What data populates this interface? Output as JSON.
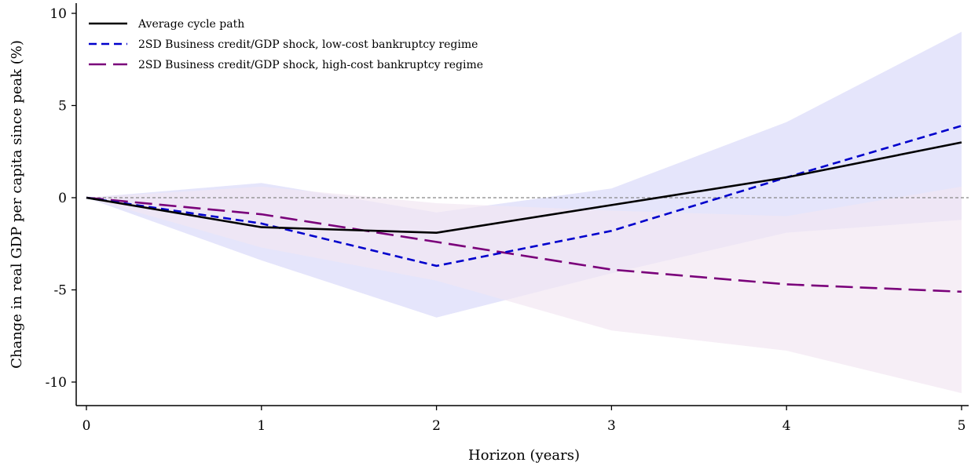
{
  "chart_data": {
    "type": "line",
    "title": "",
    "xlabel": "Horizon (years)",
    "ylabel": "Change in real GDP per capita since peak (%)",
    "xlim": [
      0,
      5
    ],
    "ylim": [
      -11,
      10.5
    ],
    "x_ticks": [
      0,
      1,
      2,
      3,
      4,
      5
    ],
    "y_ticks": [
      10,
      5,
      0,
      -5,
      -10
    ],
    "grid": false,
    "legend_position": "top-left",
    "reference_line": {
      "y": 0,
      "style": "dashed",
      "color": "#888888"
    },
    "x": [
      0,
      1,
      2,
      3,
      4,
      5
    ],
    "bands": [
      {
        "of": "2SD Business credit/GDP shock, low-cost bankruptcy regime",
        "color": "#e5e5fb",
        "lower": [
          0,
          -3.4,
          -6.5,
          -4.1,
          -1.9,
          -1.2
        ],
        "upper": [
          0,
          0.8,
          -0.8,
          0.5,
          4.1,
          9.0
        ]
      },
      {
        "of": "2SD Business credit/GDP shock, high-cost bankruptcy regime",
        "color": "#f2e7f2",
        "lower": [
          0,
          -2.7,
          -4.5,
          -7.2,
          -8.3,
          -10.6
        ],
        "upper": [
          0,
          0.6,
          -0.3,
          -0.7,
          -1.0,
          0.6
        ]
      }
    ],
    "series": [
      {
        "name": "Average cycle path",
        "color": "#000000",
        "style": "solid",
        "values": [
          0,
          -1.6,
          -1.9,
          -0.4,
          1.1,
          3.0
        ]
      },
      {
        "name": "2SD Business credit/GDP shock, low-cost bankruptcy regime",
        "color": "#0000cc",
        "style": "dashed",
        "values": [
          0,
          -1.4,
          -3.7,
          -1.8,
          1.1,
          3.9
        ]
      },
      {
        "name": "2SD Business credit/GDP shock, high-cost bankruptcy regime",
        "color": "#7a007a",
        "style": "longdash",
        "values": [
          0,
          -0.9,
          -2.4,
          -3.9,
          -4.7,
          -5.1
        ]
      }
    ]
  }
}
